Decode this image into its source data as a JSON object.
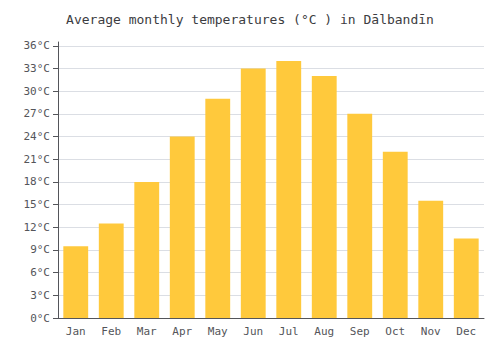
{
  "chart_data": {
    "type": "bar",
    "title": "Average monthly temperatures (°C ) in Dālbandīn",
    "categories": [
      "Jan",
      "Feb",
      "Mar",
      "Apr",
      "May",
      "Jun",
      "Jul",
      "Aug",
      "Sep",
      "Oct",
      "Nov",
      "Dec"
    ],
    "values": [
      9.5,
      12.5,
      18.0,
      24.0,
      29.0,
      33.0,
      34.0,
      32.0,
      27.0,
      22.0,
      15.5,
      10.5
    ],
    "color": "#FFC93C",
    "ylim": [
      0,
      36.5
    ],
    "yticks": [
      {
        "value": 0,
        "label": "0°C"
      },
      {
        "value": 3,
        "label": "3°C"
      },
      {
        "value": 6,
        "label": "6°C"
      },
      {
        "value": 9,
        "label": "9°C"
      },
      {
        "value": 12,
        "label": "12°C"
      },
      {
        "value": 15,
        "label": "15°C"
      },
      {
        "value": 18,
        "label": "18°C"
      },
      {
        "value": 21,
        "label": "21°C"
      },
      {
        "value": 24,
        "label": "24°C"
      },
      {
        "value": 27,
        "label": "27°C"
      },
      {
        "value": 30,
        "label": "30°C"
      },
      {
        "value": 33,
        "label": "33°C"
      },
      {
        "value": 36,
        "label": "36°C"
      }
    ],
    "grid": true
  }
}
